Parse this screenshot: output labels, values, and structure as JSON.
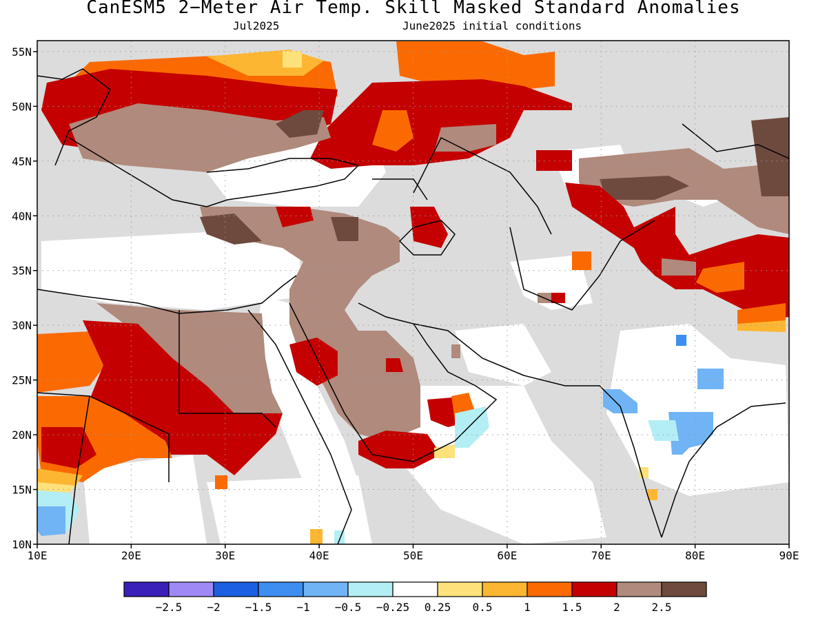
{
  "title": "CanESM5 2−Meter Air Temp. Skill Masked Standard Anomalies",
  "subtitle_left": "Jul2025",
  "subtitle_right": "June2025 initial conditions",
  "map": {
    "lon_labels": [
      "10E",
      "20E",
      "30E",
      "40E",
      "50E",
      "60E",
      "70E",
      "80E",
      "90E"
    ],
    "lat_labels": [
      "55N",
      "50N",
      "45N",
      "40N",
      "35N",
      "30N",
      "25N",
      "20N",
      "15N",
      "10N"
    ],
    "lon_range": [
      10,
      90
    ],
    "lat_range": [
      10,
      56
    ],
    "grid": "dotted"
  },
  "colorbar": {
    "colors": [
      "#3a1fb8",
      "#9f89f5",
      "#1c5fe0",
      "#3d8ef0",
      "#70b4f5",
      "#b3eef5",
      "#ffffff",
      "#fde17a",
      "#fdb632",
      "#fb6a00",
      "#c40000",
      "#b08a7c",
      "#6e4a3e"
    ],
    "labels": [
      "−2.5",
      "−2",
      "−1.5",
      "−1",
      "−0.5",
      "−0.25",
      "0.25",
      "0.5",
      "1",
      "1.5",
      "2",
      "2.5"
    ]
  },
  "colors": {
    "masked_gray": "#dcdcdc",
    "brown": "#b08a7c",
    "dark_brown": "#6e4a3e",
    "red": "#c40000",
    "orange": "#fb6a00",
    "light_orange": "#fdb632",
    "yellow": "#fde17a",
    "light_blue": "#70b4f5",
    "pale_blue": "#b3eef5",
    "blue": "#3d8ef0"
  }
}
